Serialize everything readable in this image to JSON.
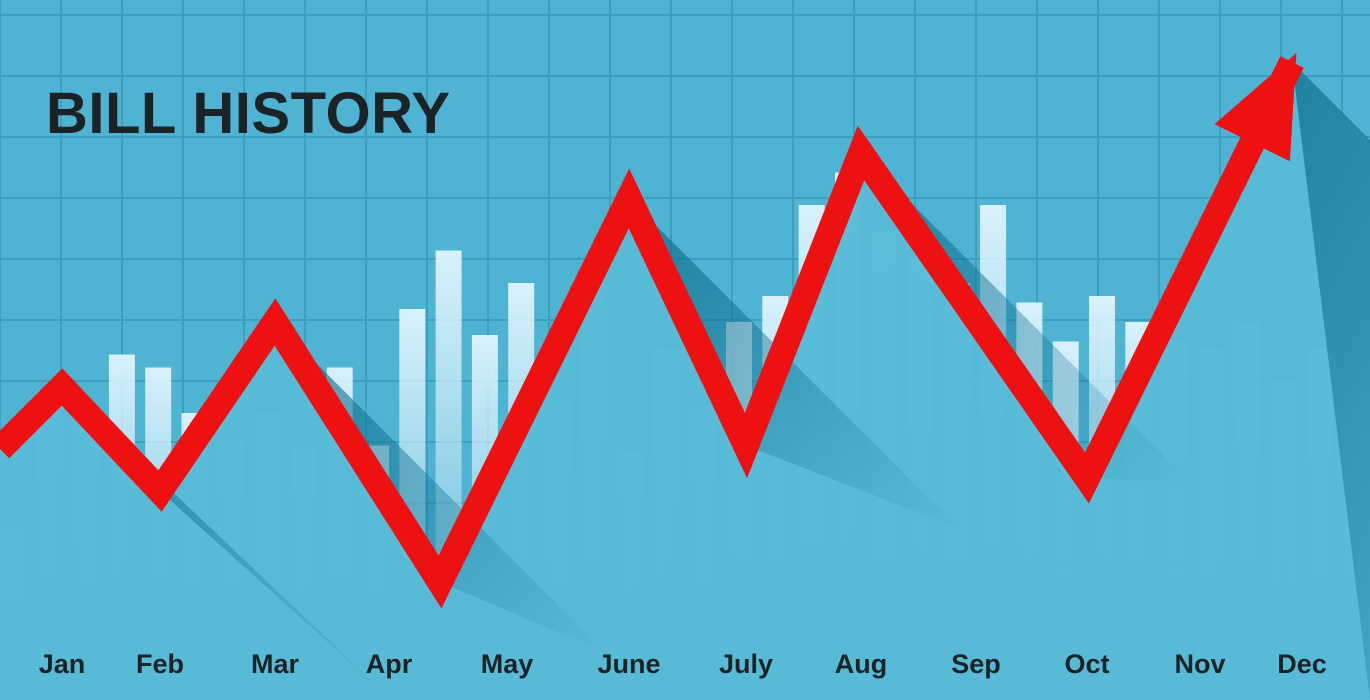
{
  "colors": {
    "background": "#4fb3d3",
    "grid": "#3c9fc0",
    "bars": "#e4f7ff",
    "mountain_light": "#57bbd8",
    "mountain_dark": "#0f6f8f",
    "trend_line": "#ee1111",
    "text": "#1c2326"
  },
  "chart_data": {
    "type": "line",
    "title": "BILL HISTORY",
    "categories": [
      "Jan",
      "Feb",
      "Mar",
      "Apr",
      "May",
      "June",
      "July",
      "Aug",
      "Sep",
      "Oct",
      "Nov",
      "Dec"
    ],
    "trend_points": [
      {
        "month": "Jan",
        "value": 42
      },
      {
        "month": "Feb",
        "value": 26
      },
      {
        "month": "Mar",
        "value": 52
      },
      {
        "month": "Apr",
        "value": 12
      },
      {
        "month": "June",
        "value": 71
      },
      {
        "month": "July",
        "value": 33
      },
      {
        "month": "Aug",
        "value": 78
      },
      {
        "month": "Oct",
        "value": 28
      },
      {
        "month": "Dec",
        "value": 92
      }
    ],
    "background_bars": [
      20,
      41,
      39,
      47,
      45,
      38,
      34,
      38,
      33,
      45,
      33,
      54,
      63,
      50,
      58,
      40,
      58,
      32,
      48,
      39,
      52,
      56,
      70,
      75,
      66,
      62,
      58,
      70,
      55,
      49,
      56,
      52,
      49,
      48,
      52,
      43,
      48,
      41
    ],
    "ylim": [
      0,
      100
    ],
    "grid": true,
    "arrow_at_end": true
  }
}
